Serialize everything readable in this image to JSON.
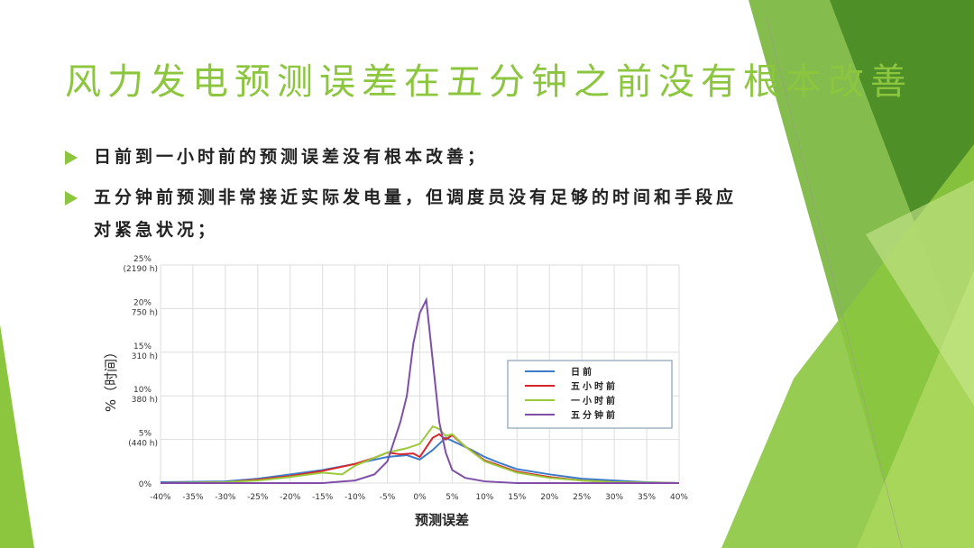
{
  "slide": {
    "title": "风力发电预测误差在五分钟之前没有根本改善",
    "bullets": [
      "日前到一小时前的预测误差没有根本改善；",
      "五分钟前预测非常接近实际发电量，但调度员没有足够的时间和手段应对紧急状况；"
    ],
    "accent_color": "#8cc63f"
  },
  "chart_data": {
    "type": "line",
    "xlabel": "预测误差",
    "ylabel": "%（时间）",
    "xlim": [
      -40,
      40
    ],
    "ylim": [
      0,
      25
    ],
    "grid": true,
    "legend": "right",
    "xticks": [
      "-40%",
      "-35%",
      "-30%",
      "-25%",
      "-20%",
      "-15%",
      "-10%",
      "-5%",
      "0%",
      "5%",
      "10%",
      "15%",
      "20%",
      "25%",
      "30%",
      "35%",
      "40%"
    ],
    "yticks": [
      {
        "v": 0,
        "l1": "0%",
        "l2": ""
      },
      {
        "v": 5,
        "l1": "5%",
        "l2": "(440 h)"
      },
      {
        "v": 10,
        "l1": "10%",
        "l2": "380 h)"
      },
      {
        "v": 15,
        "l1": "15%",
        "l2": "310 h)"
      },
      {
        "v": 20,
        "l1": "20%",
        "l2": "750 h)"
      },
      {
        "v": 25,
        "l1": "25%",
        "l2": "(2190 h)"
      }
    ],
    "series": [
      {
        "name": "日前",
        "color": "#3d7cc9",
        "x": [
          -40,
          -30,
          -25,
          -20,
          -15,
          -10,
          -5,
          -2,
          0,
          2,
          4,
          6,
          8,
          10,
          12,
          15,
          20,
          25,
          30,
          35,
          40
        ],
        "y": [
          0.1,
          0.2,
          0.5,
          1.0,
          1.5,
          2.2,
          3.0,
          3.2,
          2.7,
          3.8,
          5.2,
          4.5,
          3.8,
          3.0,
          2.4,
          1.6,
          1.0,
          0.5,
          0.3,
          0.1,
          0
        ]
      },
      {
        "name": "五小时前",
        "color": "#d7262b",
        "x": [
          -40,
          -30,
          -25,
          -20,
          -15,
          -10,
          -7,
          -5,
          -3,
          -1,
          0,
          2,
          3,
          4,
          5,
          7,
          10,
          15,
          20,
          25,
          30,
          40
        ],
        "y": [
          0,
          0.1,
          0.4,
          0.8,
          1.4,
          2.2,
          2.9,
          3.5,
          3.3,
          3.4,
          3.0,
          5.2,
          5.6,
          5.0,
          5.5,
          4.2,
          2.6,
          1.3,
          0.7,
          0.3,
          0.1,
          0
        ]
      },
      {
        "name": "一小时前",
        "color": "#9bc93a",
        "x": [
          -40,
          -30,
          -25,
          -20,
          -15,
          -12,
          -10,
          -5,
          -2,
          0,
          2,
          3,
          4,
          5,
          7,
          10,
          15,
          20,
          25,
          30,
          40
        ],
        "y": [
          0,
          0.1,
          0.3,
          0.7,
          1.2,
          1.0,
          2.0,
          3.5,
          4.0,
          4.5,
          6.5,
          6.2,
          5.4,
          5.6,
          4.2,
          2.5,
          1.2,
          0.6,
          0.3,
          0.1,
          0
        ]
      },
      {
        "name": "五分钟前",
        "color": "#7f4fa8",
        "x": [
          -40,
          -15,
          -10,
          -7,
          -5,
          -3,
          -2,
          -1,
          0,
          1,
          2,
          3,
          4,
          5,
          7,
          10,
          15,
          40
        ],
        "y": [
          0,
          0,
          0.3,
          1.0,
          2.5,
          7,
          10,
          16,
          19.5,
          21,
          14,
          7,
          3.5,
          1.5,
          0.6,
          0.2,
          0,
          0
        ]
      }
    ]
  }
}
